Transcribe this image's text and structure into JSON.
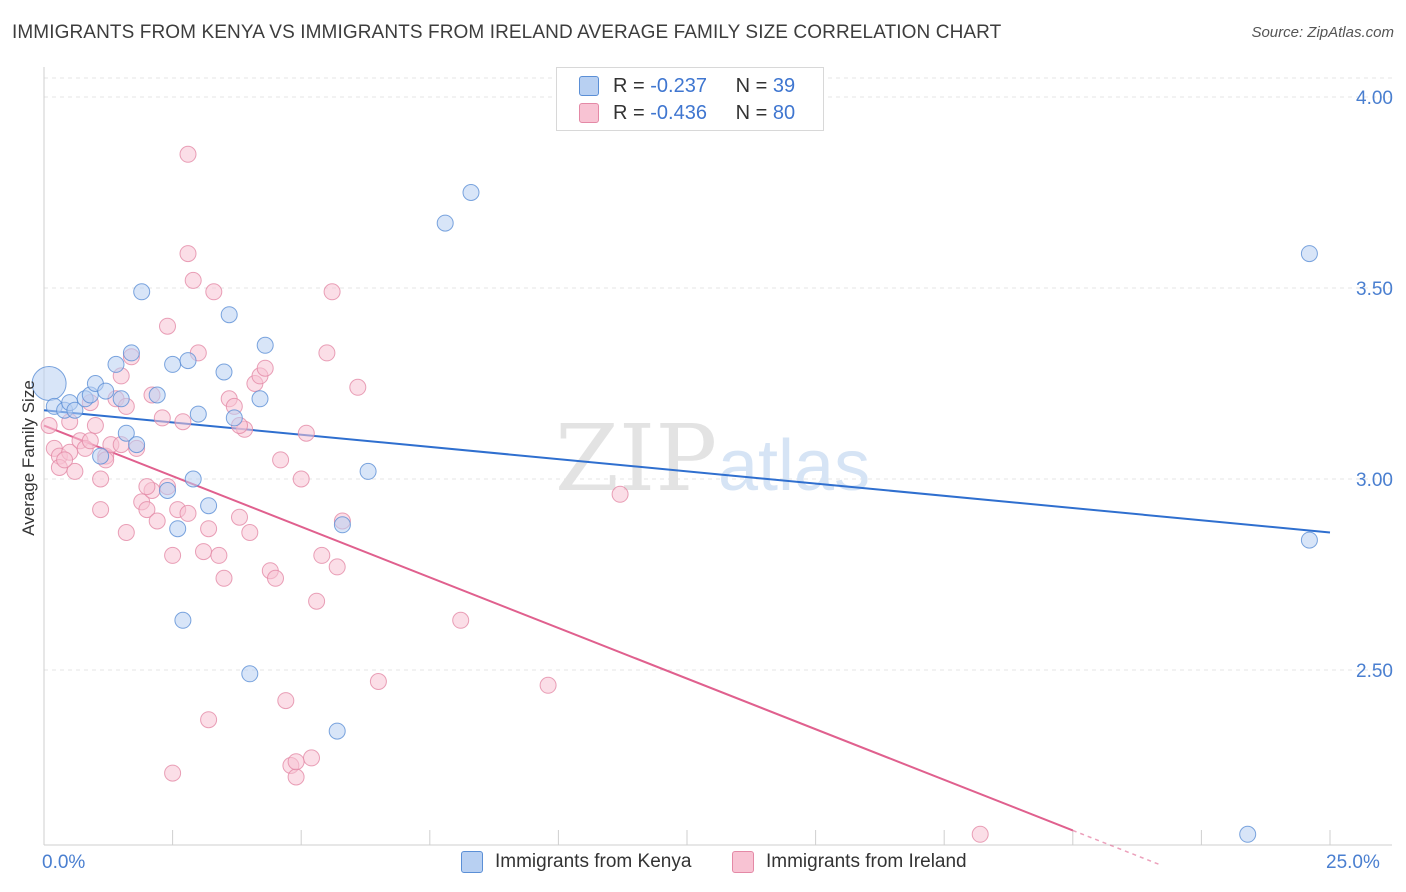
{
  "header": {
    "title": "IMMIGRANTS FROM KENYA VS IMMIGRANTS FROM IRELAND AVERAGE FAMILY SIZE CORRELATION CHART",
    "source": "Source: ZipAtlas.com"
  },
  "colors": {
    "kenya_fill": "#b8d0f2",
    "kenya_stroke": "#5b8fd6",
    "kenya_line": "#2f6fcf",
    "ireland_fill": "#f8c3d3",
    "ireland_stroke": "#e489a6",
    "ireland_line": "#e0608e",
    "tick_blue": "#4a7fd0"
  },
  "legend": {
    "kenya": {
      "r_label": "R =",
      "r_value": "-0.237",
      "n_label": "N =",
      "n_value": "39"
    },
    "ireland": {
      "r_label": "R =",
      "r_value": "-0.436",
      "n_label": "N =",
      "n_value": "80"
    }
  },
  "watermark": {
    "zip": "ZIP",
    "atlas": "atlas"
  },
  "chart_data": {
    "type": "scatter",
    "title": "IMMIGRANTS FROM KENYA VS IMMIGRANTS FROM IRELAND AVERAGE FAMILY SIZE CORRELATION CHART",
    "xlabel": "",
    "ylabel": "Average Family Size",
    "xlim": [
      0,
      25
    ],
    "ylim": [
      2.05,
      4.05
    ],
    "x_tick_labels": [
      "0.0%",
      "25.0%"
    ],
    "y_ticks": [
      2.5,
      3.0,
      3.5,
      4.0
    ],
    "y_tick_labels": [
      "2.50",
      "3.00",
      "3.50",
      "4.00"
    ],
    "legend_position": "bottom-center",
    "series": [
      {
        "name": "Immigrants from Kenya",
        "trend": {
          "x": [
            0,
            25
          ],
          "y": [
            3.18,
            2.86
          ]
        },
        "points": [
          {
            "x": 0.1,
            "y": 3.25,
            "big": true
          },
          {
            "x": 0.2,
            "y": 3.19
          },
          {
            "x": 0.4,
            "y": 3.18
          },
          {
            "x": 0.5,
            "y": 3.2
          },
          {
            "x": 0.6,
            "y": 3.18
          },
          {
            "x": 0.8,
            "y": 3.21
          },
          {
            "x": 0.9,
            "y": 3.22
          },
          {
            "x": 1.0,
            "y": 3.25
          },
          {
            "x": 1.1,
            "y": 3.06
          },
          {
            "x": 1.2,
            "y": 3.23
          },
          {
            "x": 1.4,
            "y": 3.3
          },
          {
            "x": 1.5,
            "y": 3.21
          },
          {
            "x": 1.6,
            "y": 3.12
          },
          {
            "x": 1.7,
            "y": 3.33
          },
          {
            "x": 1.8,
            "y": 3.09
          },
          {
            "x": 1.9,
            "y": 3.49
          },
          {
            "x": 2.2,
            "y": 3.22
          },
          {
            "x": 2.4,
            "y": 2.97
          },
          {
            "x": 2.5,
            "y": 3.3
          },
          {
            "x": 2.6,
            "y": 2.87
          },
          {
            "x": 2.7,
            "y": 2.63
          },
          {
            "x": 2.8,
            "y": 3.31
          },
          {
            "x": 2.9,
            "y": 3.0
          },
          {
            "x": 3.0,
            "y": 3.17
          },
          {
            "x": 3.2,
            "y": 2.93
          },
          {
            "x": 3.5,
            "y": 3.28
          },
          {
            "x": 3.6,
            "y": 3.43
          },
          {
            "x": 3.7,
            "y": 3.16
          },
          {
            "x": 4.0,
            "y": 2.49
          },
          {
            "x": 4.2,
            "y": 3.21
          },
          {
            "x": 4.3,
            "y": 3.35
          },
          {
            "x": 5.7,
            "y": 2.34
          },
          {
            "x": 5.8,
            "y": 2.88
          },
          {
            "x": 6.3,
            "y": 3.02
          },
          {
            "x": 7.8,
            "y": 3.67
          },
          {
            "x": 8.3,
            "y": 3.75
          },
          {
            "x": 24.6,
            "y": 3.59
          },
          {
            "x": 24.6,
            "y": 2.84
          },
          {
            "x": 23.4,
            "y": 2.07
          }
        ]
      },
      {
        "name": "Immigrants from Ireland",
        "trend": {
          "x": [
            0,
            20.0
          ],
          "y": [
            3.14,
            2.08
          ]
        },
        "trend_dashed": {
          "x": [
            20.0,
            21.7
          ],
          "y": [
            2.08,
            1.99
          ]
        },
        "points": [
          {
            "x": 0.1,
            "y": 3.14
          },
          {
            "x": 0.2,
            "y": 3.08
          },
          {
            "x": 0.3,
            "y": 3.06
          },
          {
            "x": 0.3,
            "y": 3.03
          },
          {
            "x": 0.5,
            "y": 3.07
          },
          {
            "x": 0.5,
            "y": 3.15
          },
          {
            "x": 0.6,
            "y": 3.02
          },
          {
            "x": 0.7,
            "y": 3.1
          },
          {
            "x": 0.8,
            "y": 3.08
          },
          {
            "x": 0.9,
            "y": 3.2
          },
          {
            "x": 1.0,
            "y": 3.14
          },
          {
            "x": 1.1,
            "y": 3.0
          },
          {
            "x": 1.1,
            "y": 2.92
          },
          {
            "x": 1.2,
            "y": 3.06
          },
          {
            "x": 1.3,
            "y": 3.09
          },
          {
            "x": 1.4,
            "y": 3.21
          },
          {
            "x": 1.5,
            "y": 3.27
          },
          {
            "x": 1.6,
            "y": 3.19
          },
          {
            "x": 1.7,
            "y": 3.32
          },
          {
            "x": 1.8,
            "y": 3.08
          },
          {
            "x": 1.9,
            "y": 2.94
          },
          {
            "x": 2.0,
            "y": 2.92
          },
          {
            "x": 2.1,
            "y": 3.22
          },
          {
            "x": 2.2,
            "y": 2.89
          },
          {
            "x": 2.3,
            "y": 3.16
          },
          {
            "x": 2.4,
            "y": 2.98
          },
          {
            "x": 2.4,
            "y": 3.4
          },
          {
            "x": 2.5,
            "y": 2.8
          },
          {
            "x": 2.6,
            "y": 2.92
          },
          {
            "x": 2.7,
            "y": 3.15
          },
          {
            "x": 2.8,
            "y": 3.59
          },
          {
            "x": 2.8,
            "y": 2.91
          },
          {
            "x": 2.9,
            "y": 3.52
          },
          {
            "x": 3.0,
            "y": 3.33
          },
          {
            "x": 3.1,
            "y": 2.81
          },
          {
            "x": 3.2,
            "y": 2.87
          },
          {
            "x": 3.3,
            "y": 3.49
          },
          {
            "x": 3.4,
            "y": 2.8
          },
          {
            "x": 3.5,
            "y": 2.74
          },
          {
            "x": 3.6,
            "y": 3.21
          },
          {
            "x": 3.7,
            "y": 3.19
          },
          {
            "x": 3.8,
            "y": 2.9
          },
          {
            "x": 3.9,
            "y": 3.13
          },
          {
            "x": 4.0,
            "y": 2.86
          },
          {
            "x": 4.1,
            "y": 3.25
          },
          {
            "x": 4.2,
            "y": 3.27
          },
          {
            "x": 4.3,
            "y": 3.29
          },
          {
            "x": 4.4,
            "y": 2.76
          },
          {
            "x": 4.5,
            "y": 2.74
          },
          {
            "x": 4.6,
            "y": 3.05
          },
          {
            "x": 4.7,
            "y": 2.42
          },
          {
            "x": 4.8,
            "y": 2.25
          },
          {
            "x": 4.9,
            "y": 2.22
          },
          {
            "x": 5.0,
            "y": 3.0
          },
          {
            "x": 5.1,
            "y": 3.12
          },
          {
            "x": 5.2,
            "y": 2.27
          },
          {
            "x": 5.3,
            "y": 2.68
          },
          {
            "x": 5.4,
            "y": 2.8
          },
          {
            "x": 5.5,
            "y": 3.33
          },
          {
            "x": 5.6,
            "y": 3.49
          },
          {
            "x": 5.7,
            "y": 2.77
          },
          {
            "x": 5.8,
            "y": 2.89
          },
          {
            "x": 6.1,
            "y": 3.24
          },
          {
            "x": 6.5,
            "y": 2.47
          },
          {
            "x": 2.8,
            "y": 3.85
          },
          {
            "x": 3.2,
            "y": 2.37
          },
          {
            "x": 2.5,
            "y": 2.23
          },
          {
            "x": 2.1,
            "y": 2.97
          },
          {
            "x": 1.6,
            "y": 2.86
          },
          {
            "x": 1.2,
            "y": 3.05
          },
          {
            "x": 0.9,
            "y": 3.1
          },
          {
            "x": 0.4,
            "y": 3.05
          },
          {
            "x": 8.1,
            "y": 2.63
          },
          {
            "x": 9.8,
            "y": 2.46
          },
          {
            "x": 11.2,
            "y": 2.96
          },
          {
            "x": 18.2,
            "y": 2.07
          },
          {
            "x": 1.5,
            "y": 3.09
          },
          {
            "x": 2.0,
            "y": 2.98
          },
          {
            "x": 3.8,
            "y": 3.14
          },
          {
            "x": 4.9,
            "y": 2.26
          }
        ]
      }
    ]
  },
  "bottom_legend": {
    "kenya_label": "Immigrants from Kenya",
    "ireland_label": "Immigrants from Ireland"
  }
}
